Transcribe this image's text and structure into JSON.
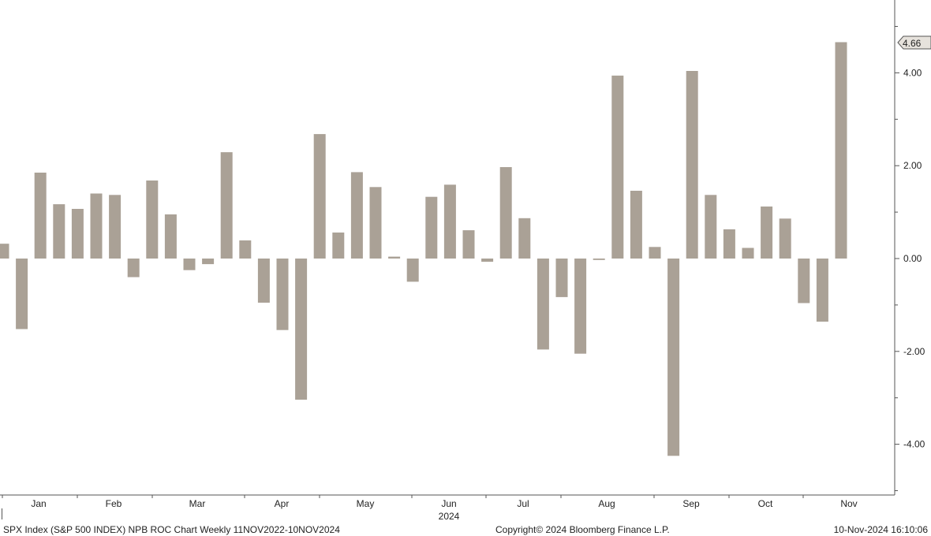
{
  "chart_data": {
    "type": "bar",
    "title": "",
    "bar_color": "#aaa196",
    "x_month_labels": [
      "Jan",
      "Feb",
      "Mar",
      "Apr",
      "May",
      "Jun",
      "Jul",
      "Aug",
      "Sep",
      "Oct",
      "Nov"
    ],
    "x_year_label": "2024",
    "y_ticks": [
      "4.00",
      "2.00",
      "0.00",
      "-2.00",
      "-4.00"
    ],
    "ylim": [
      -5,
      5.5
    ],
    "last_value_label": "4.66",
    "values": [
      0.32,
      -1.52,
      1.85,
      1.17,
      1.07,
      1.4,
      1.37,
      -0.4,
      1.68,
      0.95,
      -0.25,
      -0.12,
      2.29,
      0.39,
      -0.95,
      -1.54,
      -3.04,
      2.68,
      0.56,
      1.86,
      1.54,
      0.04,
      -0.5,
      1.33,
      1.59,
      0.61,
      -0.07,
      1.97,
      0.87,
      -1.96,
      -0.83,
      -2.05,
      -0.03,
      3.94,
      1.46,
      0.25,
      -4.25,
      4.04,
      1.37,
      0.63,
      0.23,
      1.12,
      0.86,
      -0.96,
      -1.36,
      4.66
    ]
  },
  "footer": {
    "left": "SPX Index (S&P 500 INDEX) NPB ROC Chart  Weekly 11NOV2022-10NOV2024",
    "center": "Copyright© 2024 Bloomberg Finance L.P.",
    "right": "10-Nov-2024 16:10:06"
  }
}
